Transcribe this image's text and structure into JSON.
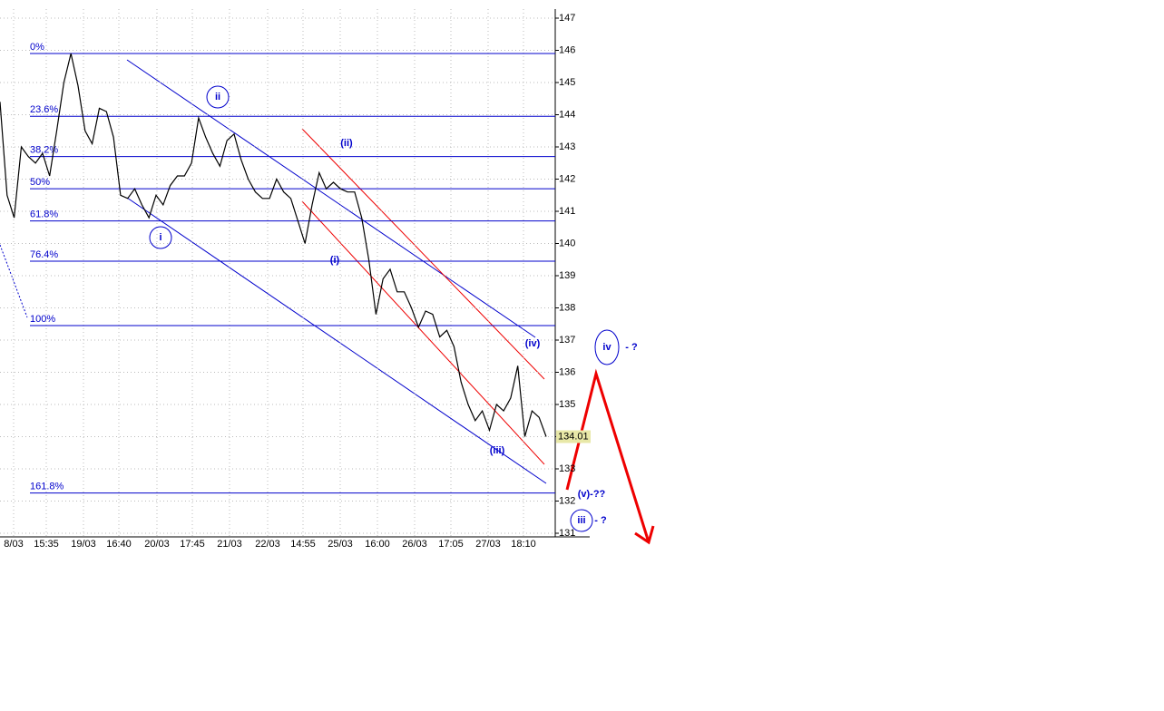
{
  "chart_data": {
    "type": "line",
    "series": [
      {
        "name": "Price",
        "color": "#000000",
        "values": [
          144.4,
          141.5,
          140.8,
          143,
          142.7,
          142.5,
          142.8,
          142.1,
          143.5,
          145,
          145.9,
          144.9,
          143.5,
          143.1,
          144.2,
          144.1,
          143.3,
          141.5,
          141.4,
          141.7,
          141.2,
          140.8,
          141.5,
          141.2,
          141.8,
          142.1,
          142.1,
          142.5,
          143.9,
          143.3,
          142.8,
          142.4,
          143.2,
          143.4,
          142.6,
          142,
          141.6,
          141.4,
          141.4,
          142,
          141.6,
          141.4,
          140.7,
          140,
          141.2,
          142.2,
          141.7,
          141.9,
          141.7,
          141.6,
          141.6,
          140.8,
          139.5,
          137.8,
          138.9,
          139.2,
          138.5,
          138.5,
          138,
          137.4,
          137.9,
          137.8,
          137.1,
          137.3,
          136.8,
          135.7,
          135,
          134.5,
          134.8,
          134.2,
          135,
          134.8,
          135.2,
          136.2,
          134,
          134.8,
          134.6,
          134
        ]
      }
    ],
    "last_price_label": "134.01",
    "xlabels": [
      "8/03",
      "15:35",
      "19/03",
      "16:40",
      "20/03",
      "17:45",
      "21/03",
      "22/03",
      "14:55",
      "25/03",
      "16:00",
      "26/03",
      "17:05",
      "27/03",
      "18:10"
    ],
    "ylim": [
      131,
      147
    ],
    "yticks": [
      131,
      132,
      133,
      134,
      135,
      136,
      137,
      138,
      139,
      140,
      141,
      142,
      143,
      144,
      145,
      146,
      147
    ],
    "grid": true,
    "fib_levels": [
      {
        "label": "0%",
        "value": 145.9
      },
      {
        "label": "23.6%",
        "value": 143.95
      },
      {
        "label": "38.2%",
        "value": 142.7
      },
      {
        "label": "50%",
        "value": 141.7
      },
      {
        "label": "61.8%",
        "value": 140.7
      },
      {
        "label": "76.4%",
        "value": 139.45
      },
      {
        "label": "100%",
        "value": 137.45
      },
      {
        "label": "161.8%",
        "value": 132.25
      }
    ],
    "annotations": [
      "i",
      "ii",
      "(i)",
      "(ii)",
      "(iii)",
      "(iv)",
      "iv",
      "- ?",
      "(v)-??",
      "iii",
      "- ?"
    ]
  }
}
